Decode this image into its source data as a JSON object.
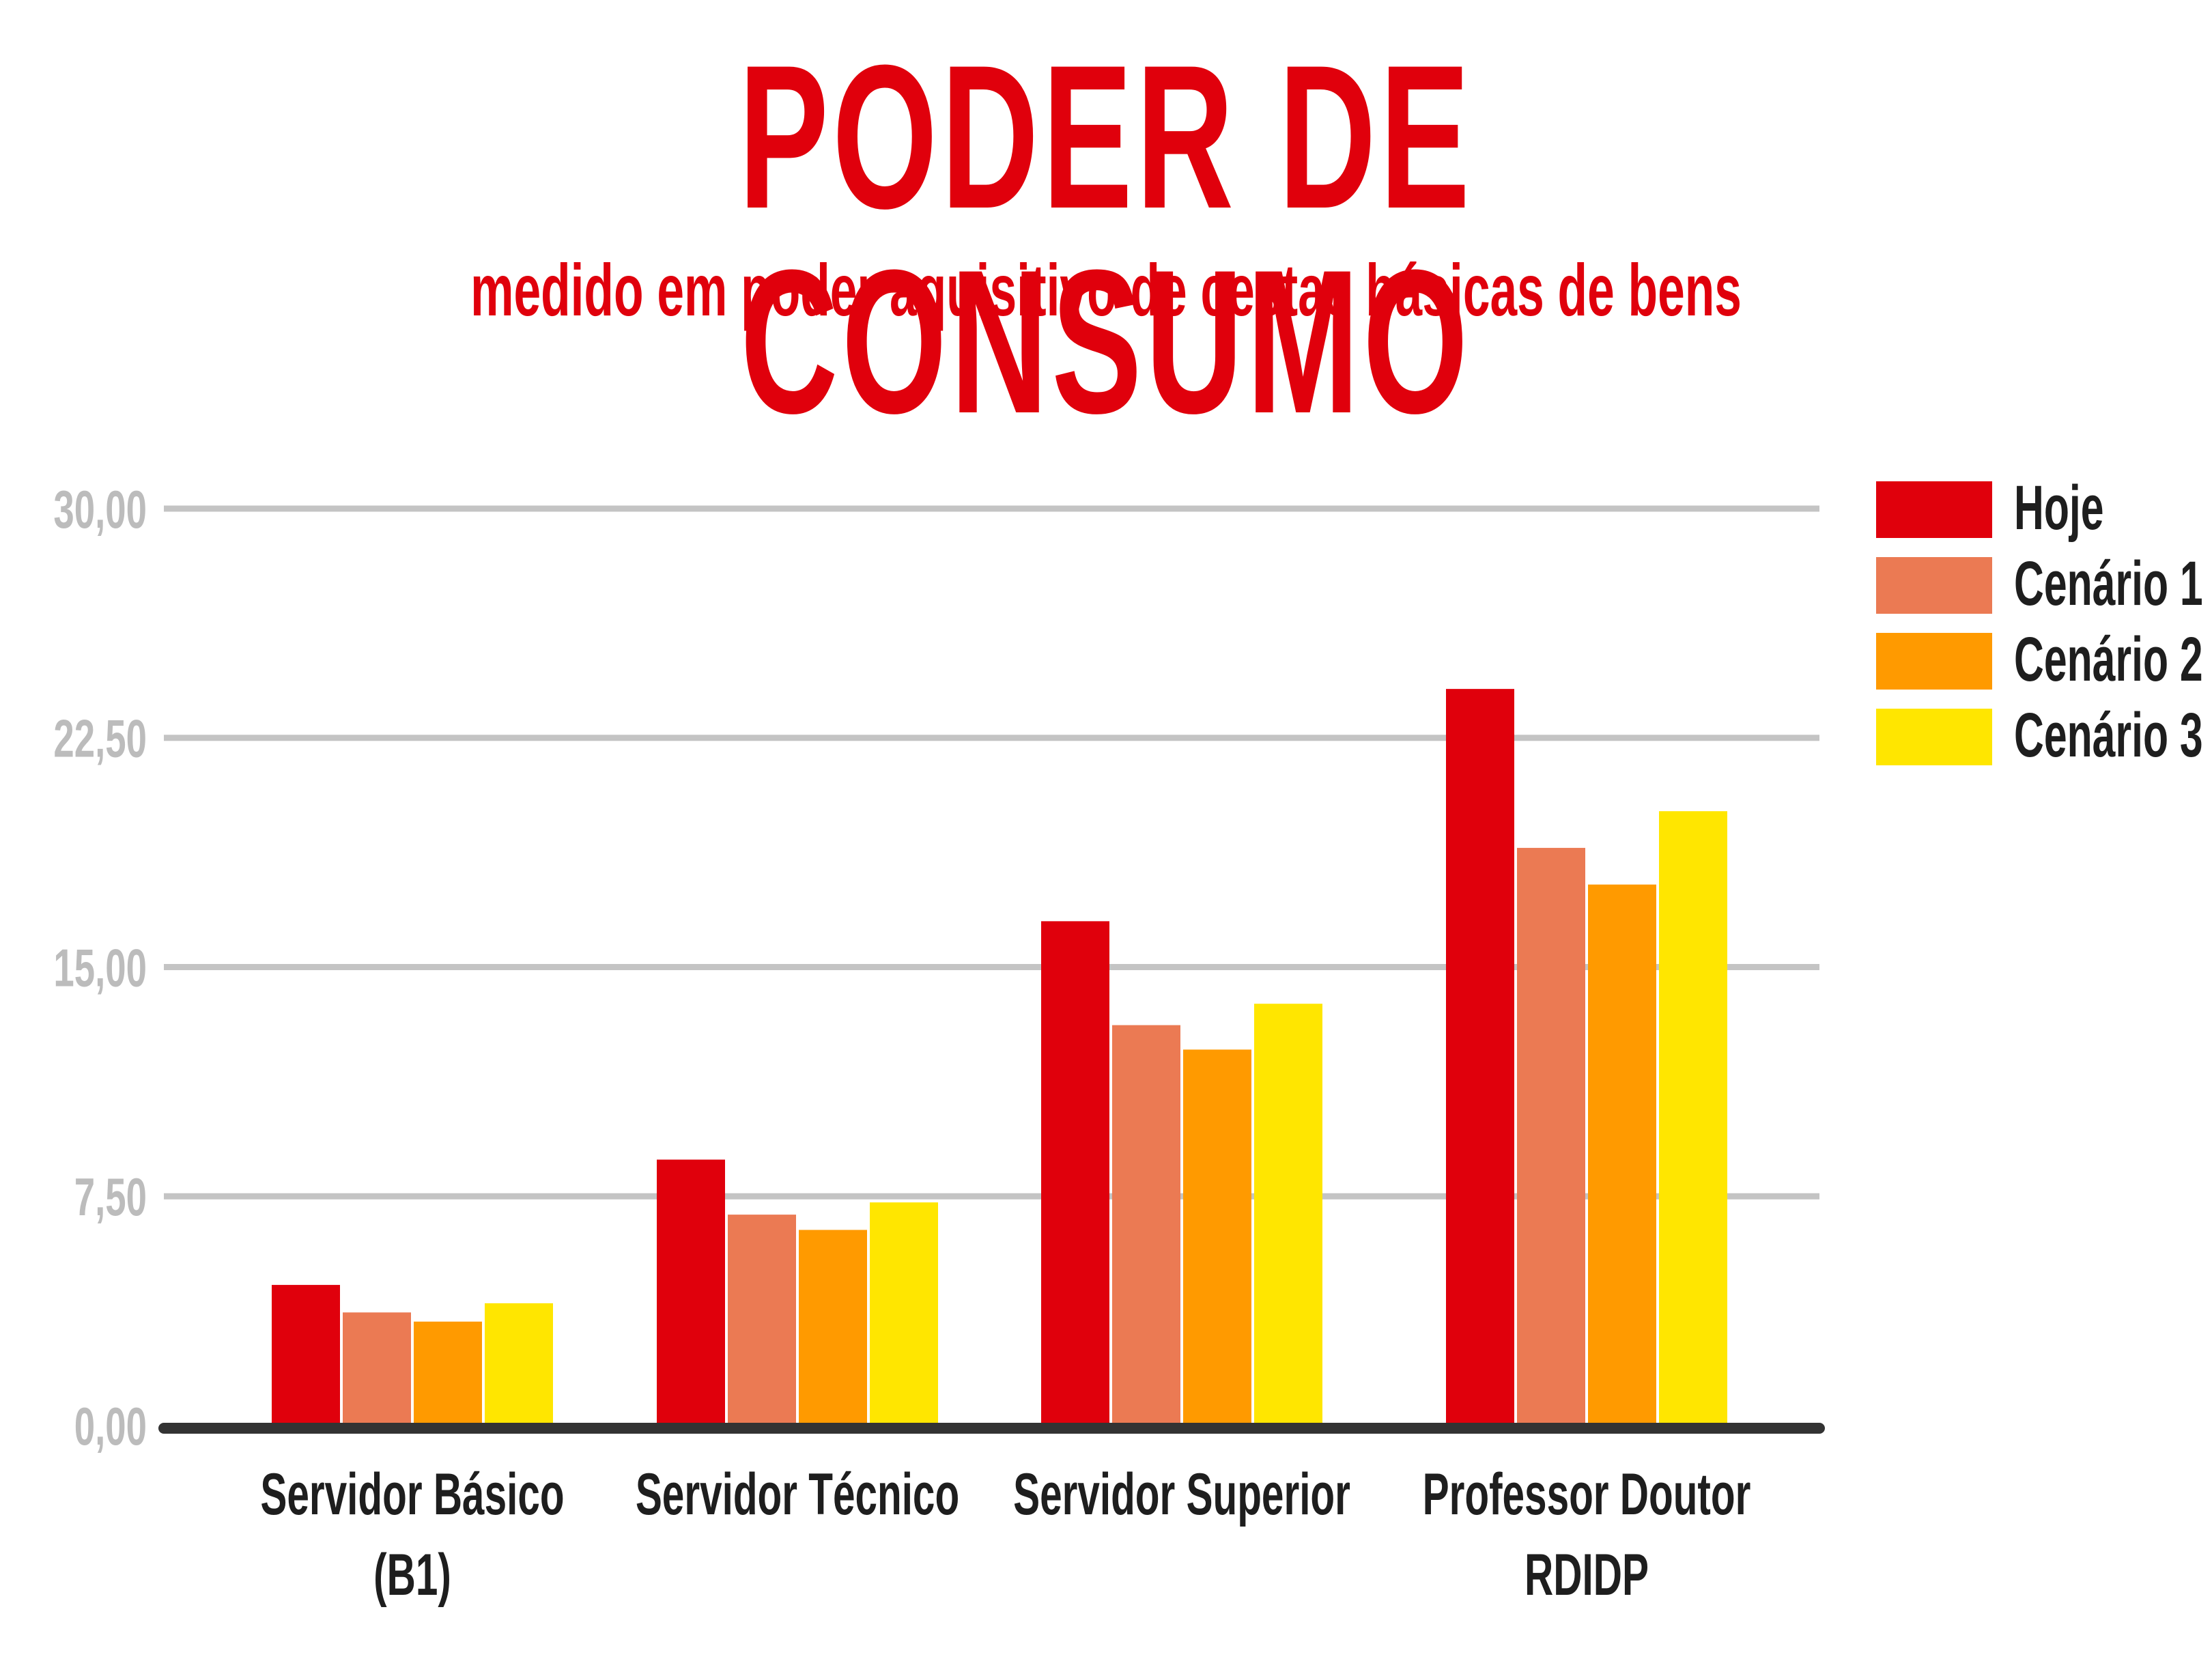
{
  "chart_data": {
    "type": "bar",
    "title": "PODER DE CONSUMO",
    "subtitle": "medido em poder aquisitivo de cestas básicas de bens",
    "xlabel": "",
    "ylabel": "",
    "categories": [
      [
        "Servidor Básico",
        "(B1)"
      ],
      [
        "Servidor Técnico"
      ],
      [
        "Servidor Superior"
      ],
      [
        "Professor Doutor",
        "RDIDP"
      ]
    ],
    "series": [
      {
        "name": "Hoje",
        "color": "#e0000c",
        "values": [
          4.6,
          8.7,
          16.5,
          24.1
        ]
      },
      {
        "name": "Cenário 1",
        "color": "#eb7a53",
        "values": [
          3.7,
          6.9,
          13.1,
          18.9
        ]
      },
      {
        "name": "Cenário 2",
        "color": "#ff9a00",
        "values": [
          3.4,
          6.4,
          12.3,
          17.7
        ]
      },
      {
        "name": "Cenário 3",
        "color": "#ffe600",
        "values": [
          4.0,
          7.3,
          13.8,
          20.1
        ]
      }
    ],
    "yticks": [
      "0,00",
      "7,50",
      "15,00",
      "22,50",
      "30,00"
    ],
    "ylim": [
      0,
      30
    ],
    "grid": true,
    "legend": "right"
  }
}
